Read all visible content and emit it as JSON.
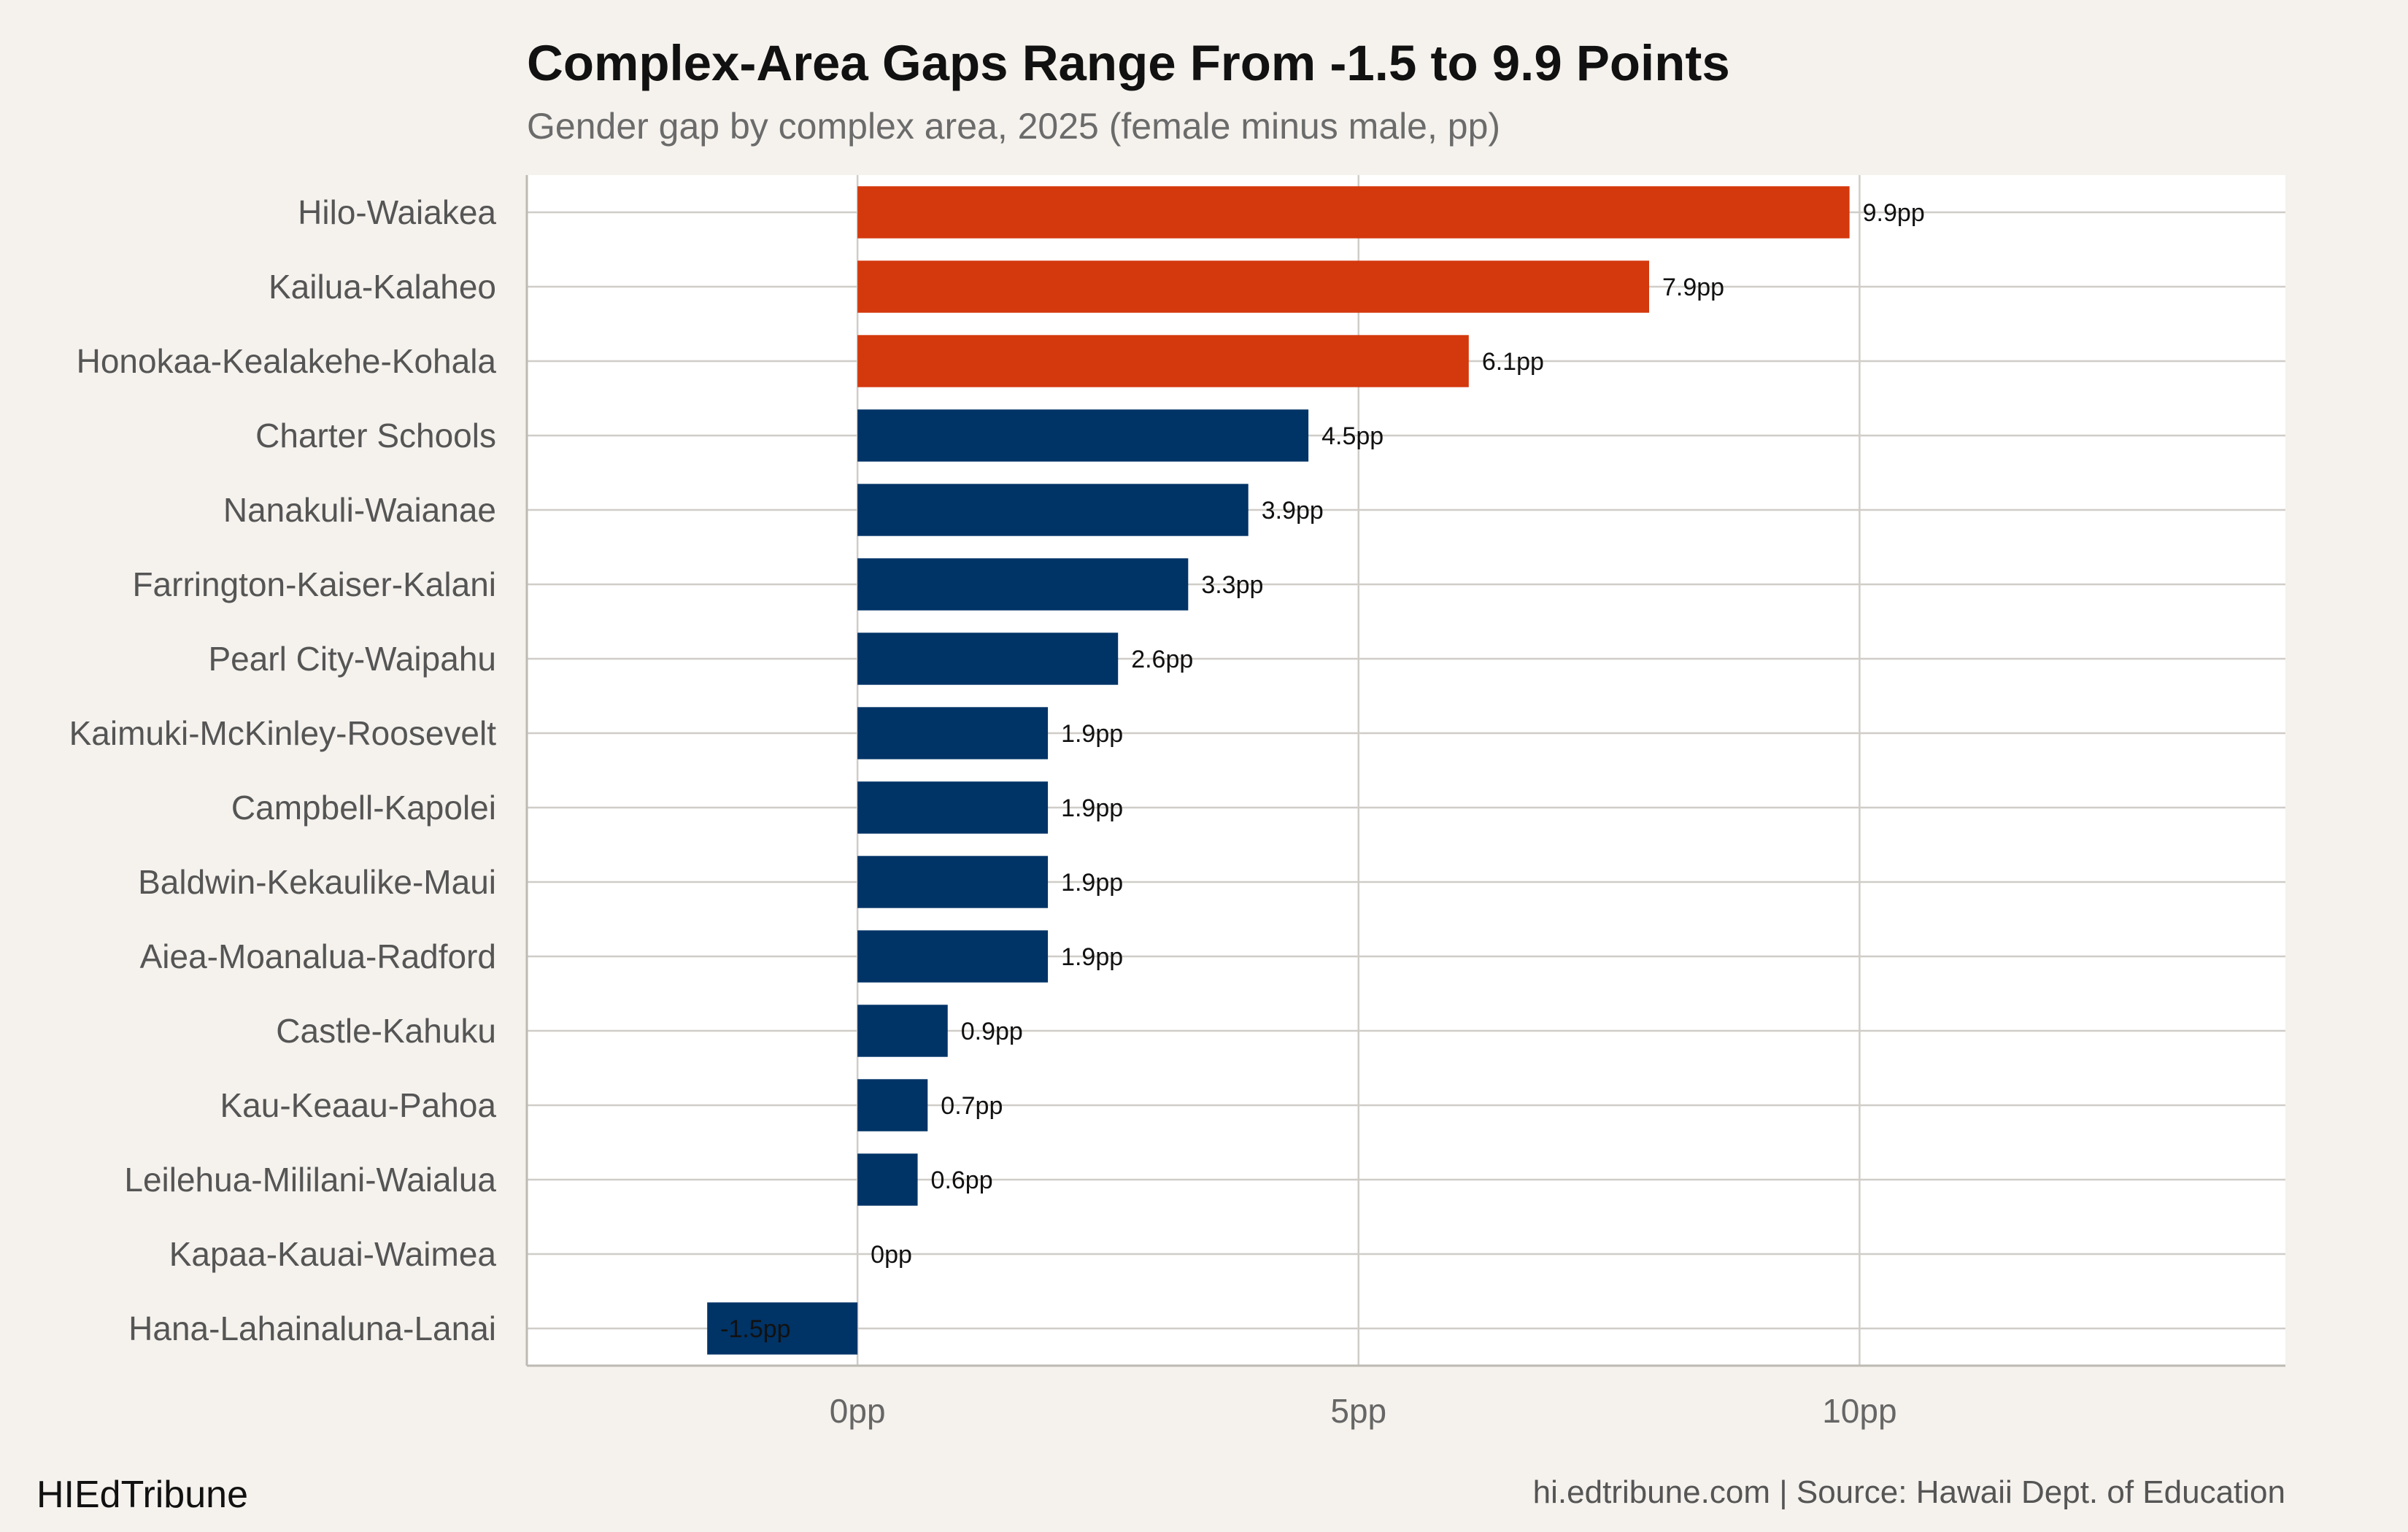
{
  "chart_data": {
    "type": "bar",
    "orientation": "horizontal",
    "title": "Complex-Area Gaps Range From -1.5 to 9.9 Points",
    "subtitle": "Gender gap by complex area, 2025 (female minus male, pp)",
    "xlabel": "",
    "ylabel": "",
    "xlim": [
      -3.3,
      14.25
    ],
    "ticks": [
      0,
      5,
      10
    ],
    "tick_labels": [
      "0pp",
      "5pp",
      "10pp"
    ],
    "grid": true,
    "categories": [
      "Hilo-Waiakea",
      "Kailua-Kalaheo",
      "Honokaa-Kealakehe-Kohala",
      "Charter Schools",
      "Nanakuli-Waianae",
      "Farrington-Kaiser-Kalani",
      "Pearl City-Waipahu",
      "Kaimuki-McKinley-Roosevelt",
      "Campbell-Kapolei",
      "Baldwin-Kekaulike-Maui",
      "Aiea-Moanalua-Radford",
      "Castle-Kahuku",
      "Kau-Keaau-Pahoa",
      "Leilehua-Mililani-Waialua",
      "Kapaa-Kauai-Waimea",
      "Hana-Lahainaluna-Lanai"
    ],
    "values": [
      9.9,
      7.9,
      6.1,
      4.5,
      3.9,
      3.3,
      2.6,
      1.9,
      1.9,
      1.9,
      1.9,
      0.9,
      0.7,
      0.6,
      0,
      -1.5
    ],
    "value_labels": [
      "9.9pp",
      "7.9pp",
      "6.1pp",
      "4.5pp",
      "3.9pp",
      "3.3pp",
      "2.6pp",
      "1.9pp",
      "1.9pp",
      "1.9pp",
      "1.9pp",
      "0.9pp",
      "0.7pp",
      "0.6pp",
      "0pp",
      "-1.5pp"
    ],
    "highlight": [
      true,
      true,
      true,
      false,
      false,
      false,
      false,
      false,
      false,
      false,
      false,
      false,
      false,
      false,
      false,
      false
    ],
    "colors": {
      "highlight": "#d4380d",
      "default": "#003366",
      "panel": "#ffffff",
      "background": "#f5f2ed",
      "grid": "#d0cdc8"
    }
  },
  "footer": {
    "brand": "HIEdTribune",
    "source": "hi.edtribune.com | Source: Hawaii Dept. of Education"
  }
}
